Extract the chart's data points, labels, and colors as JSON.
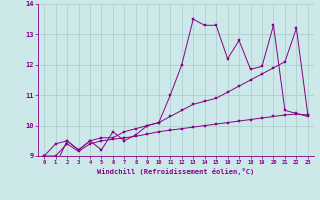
{
  "xlabel": "Windchill (Refroidissement éolien,°C)",
  "bg_color": "#cce8e8",
  "line_color": "#880088",
  "grid_color": "#aacccc",
  "series1": [
    9.0,
    8.7,
    9.5,
    9.2,
    9.5,
    9.2,
    9.8,
    9.5,
    9.7,
    10.0,
    10.1,
    11.0,
    12.0,
    13.5,
    13.3,
    13.3,
    12.2,
    12.8,
    11.85,
    11.95,
    13.3,
    10.5,
    10.4,
    10.3
  ],
  "series2": [
    9.0,
    9.4,
    9.5,
    9.2,
    9.5,
    9.6,
    9.6,
    9.8,
    9.9,
    10.0,
    10.1,
    10.3,
    10.5,
    10.7,
    10.8,
    10.9,
    11.1,
    11.3,
    11.5,
    11.7,
    11.9,
    12.1,
    13.2,
    10.35
  ],
  "series3": [
    9.0,
    9.0,
    9.4,
    9.15,
    9.4,
    9.5,
    9.55,
    9.6,
    9.65,
    9.72,
    9.8,
    9.85,
    9.9,
    9.95,
    10.0,
    10.05,
    10.1,
    10.15,
    10.2,
    10.25,
    10.3,
    10.35,
    10.38,
    10.35
  ],
  "xlim": [
    -0.5,
    23.5
  ],
  "ylim": [
    9.0,
    14.0
  ],
  "yticks": [
    9,
    10,
    11,
    12,
    13,
    14
  ],
  "xticks": [
    0,
    1,
    2,
    3,
    4,
    5,
    6,
    7,
    8,
    9,
    10,
    11,
    12,
    13,
    14,
    15,
    16,
    17,
    18,
    19,
    20,
    21,
    22,
    23
  ]
}
